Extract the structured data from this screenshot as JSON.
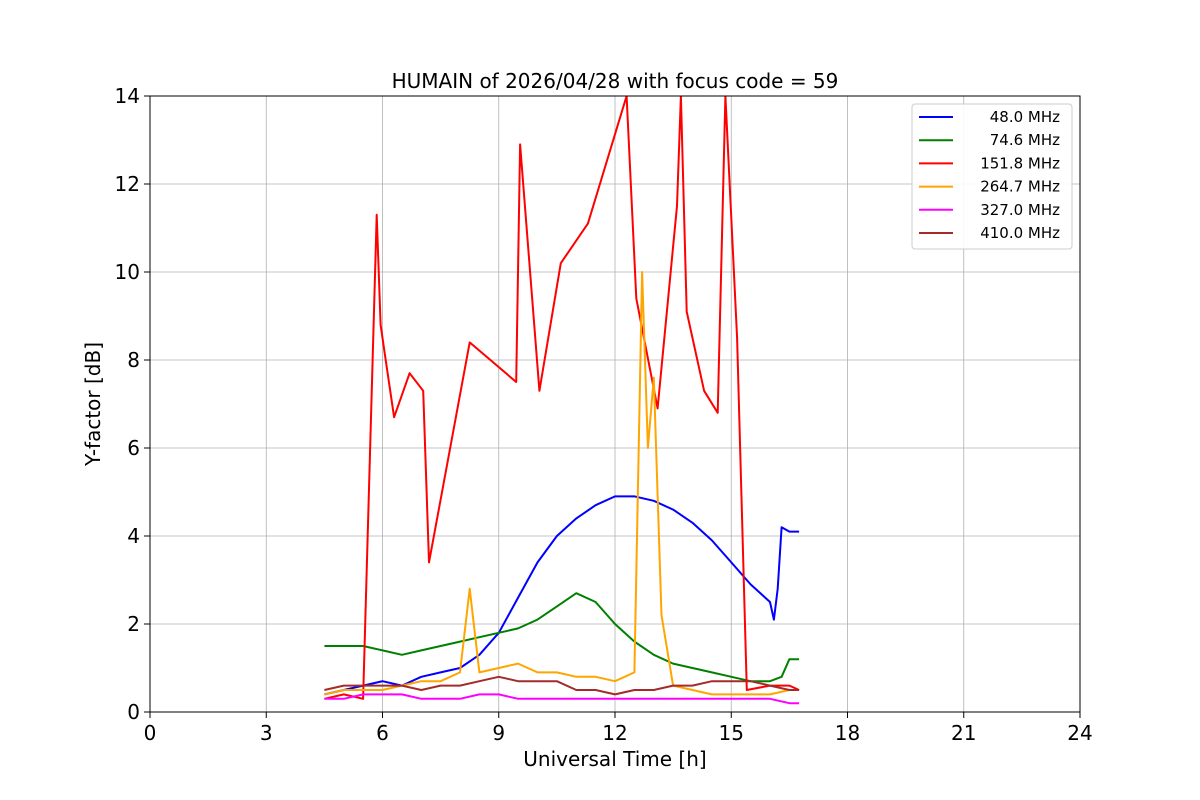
{
  "chart_data": {
    "type": "line",
    "title": "HUMAIN of 2026/04/28 with focus code = 59",
    "xlabel": "Universal Time [h]",
    "ylabel": "Y-factor [dB]",
    "xlim": [
      0,
      24
    ],
    "ylim": [
      0,
      14
    ],
    "xticks": [
      0,
      3,
      6,
      9,
      12,
      15,
      18,
      21,
      24
    ],
    "yticks": [
      0,
      2,
      4,
      6,
      8,
      10,
      12,
      14
    ],
    "grid": true,
    "legend_position": "top-right",
    "series": [
      {
        "name": "48.0 MHz",
        "color": "#0000ff",
        "x": [
          4.5,
          5.0,
          5.5,
          6.0,
          6.5,
          7.0,
          7.5,
          8.0,
          8.5,
          9.0,
          9.5,
          10.0,
          10.5,
          11.0,
          11.5,
          12.0,
          12.5,
          13.0,
          13.5,
          14.0,
          14.5,
          15.0,
          15.5,
          16.0,
          16.1,
          16.2,
          16.3,
          16.5,
          16.75
        ],
        "y": [
          0.4,
          0.5,
          0.6,
          0.7,
          0.6,
          0.8,
          0.9,
          1.0,
          1.3,
          1.8,
          2.6,
          3.4,
          4.0,
          4.4,
          4.7,
          4.9,
          4.9,
          4.8,
          4.6,
          4.3,
          3.9,
          3.4,
          2.9,
          2.5,
          2.1,
          2.8,
          4.2,
          4.1,
          4.1
        ]
      },
      {
        "name": "74.6 MHz",
        "color": "#008000",
        "x": [
          4.5,
          5.0,
          5.5,
          6.0,
          6.5,
          7.0,
          7.5,
          8.0,
          8.5,
          9.0,
          9.5,
          10.0,
          10.5,
          11.0,
          11.5,
          12.0,
          12.5,
          13.0,
          13.5,
          14.0,
          14.5,
          15.0,
          15.5,
          16.0,
          16.3,
          16.5,
          16.75
        ],
        "y": [
          1.5,
          1.5,
          1.5,
          1.4,
          1.3,
          1.4,
          1.5,
          1.6,
          1.7,
          1.8,
          1.9,
          2.1,
          2.4,
          2.7,
          2.5,
          2.0,
          1.6,
          1.3,
          1.1,
          1.0,
          0.9,
          0.8,
          0.7,
          0.7,
          0.8,
          1.2,
          1.2
        ]
      },
      {
        "name": "151.8 MHz",
        "color": "#ff0000",
        "x": [
          4.5,
          5.0,
          5.5,
          5.85,
          5.95,
          6.05,
          6.3,
          6.7,
          7.05,
          7.2,
          8.25,
          9.45,
          9.55,
          10.05,
          10.6,
          11.3,
          12.3,
          12.55,
          13.1,
          13.6,
          13.7,
          13.85,
          14.3,
          14.65,
          14.85,
          15.15,
          15.4,
          16.0,
          16.5,
          16.75
        ],
        "y": [
          0.3,
          0.4,
          0.3,
          11.3,
          8.8,
          8.2,
          6.7,
          7.7,
          7.3,
          3.4,
          8.4,
          7.5,
          12.9,
          7.3,
          10.2,
          11.1,
          14.0,
          9.4,
          6.9,
          11.5,
          14.0,
          9.1,
          7.3,
          6.8,
          14.0,
          8.5,
          0.5,
          0.6,
          0.6,
          0.5
        ]
      },
      {
        "name": "264.7 MHz",
        "color": "#ffa500",
        "x": [
          4.5,
          5.0,
          5.5,
          6.0,
          6.5,
          7.0,
          7.5,
          8.0,
          8.25,
          8.5,
          9.0,
          9.5,
          10.0,
          10.5,
          11.0,
          11.5,
          12.0,
          12.5,
          12.7,
          12.85,
          13.0,
          13.2,
          13.5,
          14.0,
          14.5,
          15.0,
          15.5,
          16.0,
          16.5,
          16.75
        ],
        "y": [
          0.4,
          0.5,
          0.5,
          0.5,
          0.6,
          0.7,
          0.7,
          0.9,
          2.8,
          0.9,
          1.0,
          1.1,
          0.9,
          0.9,
          0.8,
          0.8,
          0.7,
          0.9,
          10.0,
          6.0,
          7.6,
          2.2,
          0.6,
          0.5,
          0.4,
          0.4,
          0.4,
          0.4,
          0.5,
          0.5
        ]
      },
      {
        "name": "327.0 MHz",
        "color": "#ff00ff",
        "x": [
          4.5,
          5.0,
          5.5,
          6.0,
          6.5,
          7.0,
          7.5,
          8.0,
          8.5,
          9.0,
          9.5,
          10.0,
          10.5,
          11.0,
          11.5,
          12.0,
          12.5,
          13.0,
          13.5,
          14.0,
          14.5,
          15.0,
          15.5,
          16.0,
          16.5,
          16.75
        ],
        "y": [
          0.3,
          0.3,
          0.4,
          0.4,
          0.4,
          0.3,
          0.3,
          0.3,
          0.4,
          0.4,
          0.3,
          0.3,
          0.3,
          0.3,
          0.3,
          0.3,
          0.3,
          0.3,
          0.3,
          0.3,
          0.3,
          0.3,
          0.3,
          0.3,
          0.2,
          0.2
        ]
      },
      {
        "name": "410.0 MHz",
        "color": "#a52a2a",
        "x": [
          4.5,
          5.0,
          5.5,
          6.0,
          6.5,
          7.0,
          7.5,
          8.0,
          8.5,
          9.0,
          9.5,
          10.0,
          10.5,
          11.0,
          11.5,
          12.0,
          12.5,
          13.0,
          13.5,
          14.0,
          14.5,
          15.0,
          15.5,
          16.0,
          16.5,
          16.75
        ],
        "y": [
          0.5,
          0.6,
          0.6,
          0.6,
          0.6,
          0.5,
          0.6,
          0.6,
          0.7,
          0.8,
          0.7,
          0.7,
          0.7,
          0.5,
          0.5,
          0.4,
          0.5,
          0.5,
          0.6,
          0.6,
          0.7,
          0.7,
          0.7,
          0.6,
          0.5,
          0.5
        ]
      }
    ]
  }
}
